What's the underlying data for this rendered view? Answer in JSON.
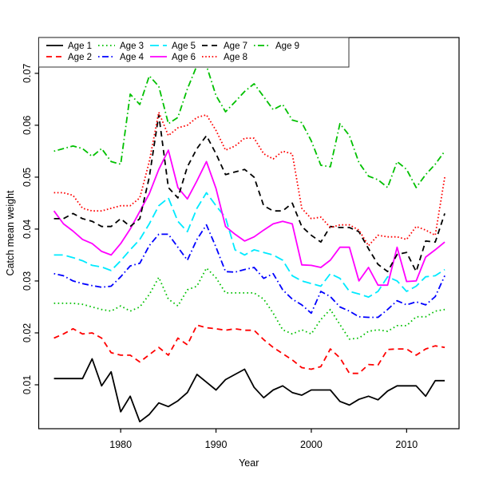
{
  "figure": {
    "background": "#ffffff",
    "axis_color": "#000000",
    "legend_border_color": "#333333"
  },
  "chart_data": {
    "type": "line",
    "title": "",
    "xlabel": "Year",
    "ylabel": "Catch mean weight",
    "x_ticks": [
      "1980",
      "1990",
      "2000",
      "2010"
    ],
    "x_tick_values": [
      1980,
      1990,
      2000,
      2010
    ],
    "y_ticks": [
      "0.01",
      "0.02",
      "0.03",
      "0.04",
      "0.05",
      "0.06",
      "0.07"
    ],
    "y_tick_values": [
      0.01,
      0.02,
      0.03,
      0.04,
      0.05,
      0.06,
      0.07
    ],
    "xlim": [
      1971.4,
      2015.5
    ],
    "ylim": [
      0.00154,
      0.0769
    ],
    "grid": false,
    "legend_position": "top-left",
    "x": [
      1973,
      1974,
      1975,
      1976,
      1977,
      1978,
      1979,
      1980,
      1981,
      1982,
      1983,
      1984,
      1985,
      1986,
      1987,
      1988,
      1989,
      1990,
      1991,
      1992,
      1993,
      1994,
      1995,
      1996,
      1997,
      1998,
      1999,
      2000,
      2001,
      2002,
      2003,
      2004,
      2005,
      2006,
      2007,
      2008,
      2009,
      2010,
      2011,
      2012,
      2013,
      2014
    ],
    "series": [
      {
        "name": "Age 1",
        "color": "#000000",
        "linestyle": "solid",
        "values": [
          0.0112,
          0.0112,
          0.0112,
          0.0112,
          0.015,
          0.0098,
          0.0125,
          0.0048,
          0.0078,
          0.0029,
          0.0043,
          0.0065,
          0.0058,
          0.0069,
          0.0085,
          0.012,
          0.0105,
          0.009,
          0.011,
          0.012,
          0.013,
          0.0095,
          0.0075,
          0.009,
          0.0098,
          0.0085,
          0.008,
          0.009,
          0.009,
          0.009,
          0.0068,
          0.0061,
          0.0072,
          0.0078,
          0.0071,
          0.0088,
          0.0098,
          0.0098,
          0.0098,
          0.0078,
          0.0108,
          0.0108
        ]
      },
      {
        "name": "Age 2",
        "color": "#ff0000",
        "linestyle": "dashed",
        "values": [
          0.019,
          0.0198,
          0.0208,
          0.0198,
          0.02,
          0.019,
          0.0162,
          0.0157,
          0.0157,
          0.0144,
          0.0158,
          0.0172,
          0.0157,
          0.019,
          0.0177,
          0.0215,
          0.021,
          0.0208,
          0.0205,
          0.0208,
          0.0205,
          0.0205,
          0.0187,
          0.0172,
          0.016,
          0.0148,
          0.0133,
          0.013,
          0.0135,
          0.0169,
          0.0152,
          0.0122,
          0.0122,
          0.0139,
          0.0138,
          0.0168,
          0.0169,
          0.0169,
          0.0157,
          0.0169,
          0.0175,
          0.0172
        ]
      },
      {
        "name": "Age 3",
        "color": "#00c000",
        "linestyle": "dotted",
        "values": [
          0.0257,
          0.0257,
          0.0257,
          0.0255,
          0.025,
          0.0245,
          0.0242,
          0.0252,
          0.0242,
          0.025,
          0.0274,
          0.0307,
          0.0265,
          0.0252,
          0.0283,
          0.029,
          0.0325,
          0.0306,
          0.0277,
          0.0277,
          0.0277,
          0.0277,
          0.0265,
          0.0238,
          0.0206,
          0.0198,
          0.0206,
          0.0198,
          0.0226,
          0.0245,
          0.0216,
          0.0188,
          0.019,
          0.0203,
          0.0206,
          0.0203,
          0.0214,
          0.0214,
          0.0231,
          0.0231,
          0.0242,
          0.0245
        ]
      },
      {
        "name": "Age 4",
        "color": "#0000ff",
        "linestyle": "dashdot",
        "values": [
          0.0314,
          0.031,
          0.03,
          0.0295,
          0.0291,
          0.0288,
          0.029,
          0.0308,
          0.0329,
          0.0334,
          0.0368,
          0.039,
          0.039,
          0.0365,
          0.034,
          0.038,
          0.0408,
          0.0365,
          0.0318,
          0.0317,
          0.0322,
          0.0326,
          0.0305,
          0.0314,
          0.0283,
          0.0265,
          0.0254,
          0.0238,
          0.028,
          0.027,
          0.025,
          0.0242,
          0.0231,
          0.023,
          0.023,
          0.0245,
          0.0262,
          0.0254,
          0.026,
          0.0254,
          0.027,
          0.031
        ]
      },
      {
        "name": "Age 5",
        "color": "#00eaff",
        "linestyle": "longdash",
        "values": [
          0.035,
          0.035,
          0.0345,
          0.0339,
          0.033,
          0.0327,
          0.032,
          0.0339,
          0.036,
          0.038,
          0.041,
          0.0445,
          0.046,
          0.0415,
          0.0395,
          0.044,
          0.047,
          0.0445,
          0.0422,
          0.036,
          0.035,
          0.036,
          0.0355,
          0.035,
          0.034,
          0.031,
          0.03,
          0.0295,
          0.029,
          0.0314,
          0.0305,
          0.028,
          0.0275,
          0.0269,
          0.028,
          0.0308,
          0.03,
          0.028,
          0.029,
          0.0308,
          0.031,
          0.0322
        ]
      },
      {
        "name": "Age 6",
        "color": "#ff00ff",
        "linestyle": "solid",
        "values": [
          0.0435,
          0.041,
          0.0396,
          0.038,
          0.0372,
          0.0357,
          0.035,
          0.0372,
          0.04,
          0.0434,
          0.0468,
          0.0515,
          0.0552,
          0.048,
          0.0458,
          0.0493,
          0.053,
          0.0478,
          0.0405,
          0.039,
          0.0377,
          0.0385,
          0.0398,
          0.041,
          0.0415,
          0.041,
          0.0331,
          0.033,
          0.0326,
          0.034,
          0.0365,
          0.0365,
          0.03,
          0.0326,
          0.0292,
          0.0292,
          0.0365,
          0.0299,
          0.03,
          0.0346,
          0.036,
          0.0375
        ]
      },
      {
        "name": "Age 7",
        "color": "#000000",
        "linestyle": "dashed",
        "values": [
          0.042,
          0.042,
          0.043,
          0.042,
          0.0415,
          0.0405,
          0.0405,
          0.042,
          0.0405,
          0.042,
          0.05,
          0.062,
          0.048,
          0.046,
          0.052,
          0.0555,
          0.058,
          0.0545,
          0.0505,
          0.051,
          0.0515,
          0.05,
          0.0445,
          0.0435,
          0.0435,
          0.045,
          0.0405,
          0.0388,
          0.0375,
          0.0405,
          0.0403,
          0.0403,
          0.0395,
          0.0362,
          0.0332,
          0.0318,
          0.0351,
          0.0355,
          0.0318,
          0.0377,
          0.0375,
          0.043
        ]
      },
      {
        "name": "Age 8",
        "color": "#ff0000",
        "linestyle": "dotted-fine",
        "values": [
          0.047,
          0.047,
          0.0465,
          0.044,
          0.0435,
          0.0435,
          0.044,
          0.0445,
          0.0445,
          0.046,
          0.053,
          0.0625,
          0.058,
          0.0595,
          0.06,
          0.0615,
          0.062,
          0.059,
          0.0552,
          0.056,
          0.0575,
          0.0575,
          0.0545,
          0.0535,
          0.055,
          0.0545,
          0.044,
          0.042,
          0.0423,
          0.0403,
          0.0408,
          0.0408,
          0.0398,
          0.0368,
          0.0388,
          0.0385,
          0.0385,
          0.038,
          0.0405,
          0.0398,
          0.0388,
          0.05
        ]
      },
      {
        "name": "Age 9",
        "color": "#00c000",
        "linestyle": "dashdot",
        "values": [
          0.055,
          0.0555,
          0.056,
          0.0555,
          0.054,
          0.0555,
          0.053,
          0.0525,
          0.066,
          0.064,
          0.0695,
          0.0675,
          0.0603,
          0.0615,
          0.067,
          0.0715,
          0.0715,
          0.0657,
          0.0626,
          0.0645,
          0.0665,
          0.068,
          0.0655,
          0.063,
          0.064,
          0.061,
          0.0605,
          0.057,
          0.0523,
          0.052,
          0.0603,
          0.058,
          0.0528,
          0.0502,
          0.0495,
          0.048,
          0.053,
          0.0515,
          0.048,
          0.0505,
          0.0525,
          0.055
        ]
      }
    ],
    "legend": {
      "labels": [
        "Age 1",
        "Age 2",
        "Age 3",
        "Age 4",
        "Age 5",
        "Age 6",
        "Age 7",
        "Age 8",
        "Age 9"
      ],
      "columns": 5,
      "rows": 2
    }
  }
}
